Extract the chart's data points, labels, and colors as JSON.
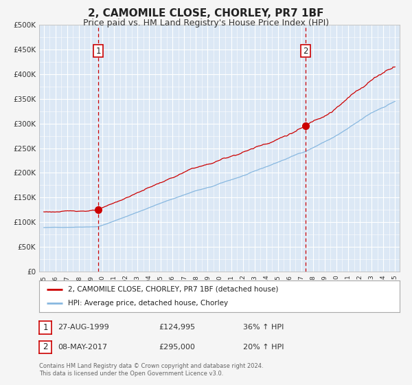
{
  "title": "2, CAMOMILE CLOSE, CHORLEY, PR7 1BF",
  "subtitle": "Price paid vs. HM Land Registry's House Price Index (HPI)",
  "fig_bg_color": "#f5f5f5",
  "plot_bg_color": "#dce8f5",
  "grid_color": "#ffffff",
  "red_line_color": "#cc0000",
  "blue_line_color": "#88b8e0",
  "marker1_date_x": 1999.648,
  "marker1_y": 124995,
  "marker2_date_x": 2017.354,
  "marker2_y": 295000,
  "vline1_x": 1999.648,
  "vline2_x": 2017.354,
  "xmin": 1994.6,
  "xmax": 2025.4,
  "ymin": 0,
  "ymax": 500000,
  "yticks": [
    0,
    50000,
    100000,
    150000,
    200000,
    250000,
    300000,
    350000,
    400000,
    450000,
    500000
  ],
  "ytick_labels": [
    "£0",
    "£50K",
    "£100K",
    "£150K",
    "£200K",
    "£250K",
    "£300K",
    "£350K",
    "£400K",
    "£450K",
    "£500K"
  ],
  "xticks": [
    1995,
    1996,
    1997,
    1998,
    1999,
    2000,
    2001,
    2002,
    2003,
    2004,
    2005,
    2006,
    2007,
    2008,
    2009,
    2010,
    2011,
    2012,
    2013,
    2014,
    2015,
    2016,
    2017,
    2018,
    2019,
    2020,
    2021,
    2022,
    2023,
    2024,
    2025
  ],
  "legend_label_red": "2, CAMOMILE CLOSE, CHORLEY, PR7 1BF (detached house)",
  "legend_label_blue": "HPI: Average price, detached house, Chorley",
  "table_row1": [
    "1",
    "27-AUG-1999",
    "£124,995",
    "36% ↑ HPI"
  ],
  "table_row2": [
    "2",
    "08-MAY-2017",
    "£295,000",
    "20% ↑ HPI"
  ],
  "footer_text": "Contains HM Land Registry data © Crown copyright and database right 2024.\nThis data is licensed under the Open Government Licence v3.0."
}
